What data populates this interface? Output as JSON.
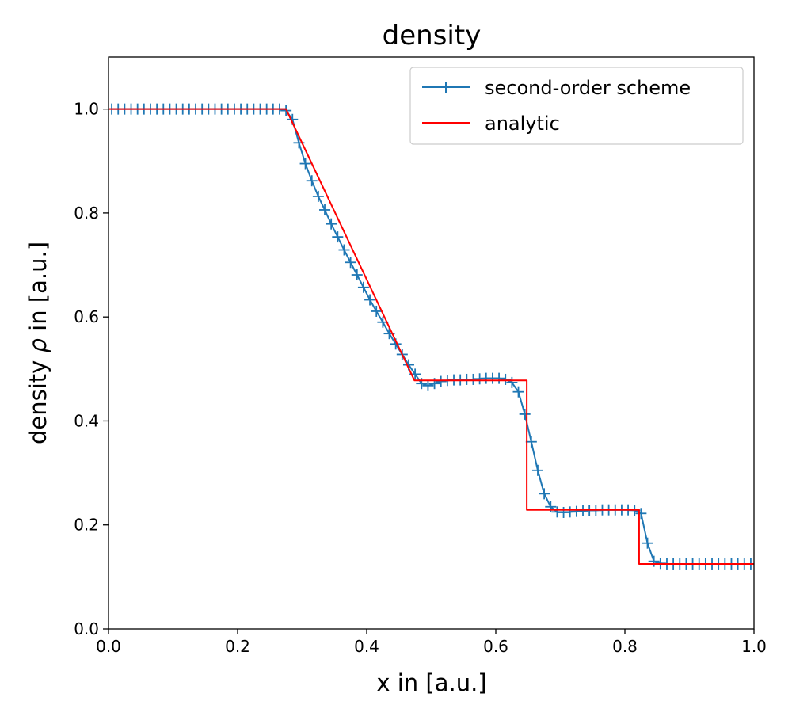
{
  "chart_data": {
    "type": "line",
    "title": "density",
    "xlabel": "x in [a.u.]",
    "ylabel": "density ρ in [a.u.]",
    "ylabel_prefix": "density ",
    "ylabel_symbol": "ρ",
    "ylabel_suffix": " in [a.u.]",
    "xlim": [
      0.0,
      1.0
    ],
    "ylim": [
      0.0,
      1.1
    ],
    "xticks": [
      "0.0",
      "0.2",
      "0.4",
      "0.6",
      "0.8",
      "1.0"
    ],
    "yticks": [
      "0.0",
      "0.2",
      "0.4",
      "0.6",
      "0.8",
      "1.0"
    ],
    "grid": false,
    "legend_position": "top-right",
    "series": [
      {
        "name": "second-order scheme",
        "color": "#1f77b4",
        "marker": "plus",
        "x": [
          0.005,
          0.015,
          0.025,
          0.035,
          0.045,
          0.055,
          0.065,
          0.075,
          0.085,
          0.095,
          0.105,
          0.115,
          0.125,
          0.135,
          0.145,
          0.155,
          0.165,
          0.175,
          0.185,
          0.195,
          0.205,
          0.215,
          0.225,
          0.235,
          0.245,
          0.255,
          0.265,
          0.275,
          0.285,
          0.295,
          0.305,
          0.315,
          0.325,
          0.335,
          0.345,
          0.355,
          0.365,
          0.375,
          0.385,
          0.395,
          0.405,
          0.415,
          0.425,
          0.435,
          0.445,
          0.455,
          0.465,
          0.475,
          0.485,
          0.495,
          0.505,
          0.515,
          0.525,
          0.535,
          0.545,
          0.555,
          0.565,
          0.575,
          0.585,
          0.595,
          0.605,
          0.615,
          0.625,
          0.635,
          0.645,
          0.655,
          0.665,
          0.675,
          0.685,
          0.695,
          0.705,
          0.715,
          0.725,
          0.735,
          0.745,
          0.755,
          0.765,
          0.775,
          0.785,
          0.795,
          0.805,
          0.815,
          0.825,
          0.835,
          0.845,
          0.855,
          0.865,
          0.875,
          0.885,
          0.895,
          0.905,
          0.915,
          0.925,
          0.935,
          0.945,
          0.955,
          0.965,
          0.975,
          0.985,
          0.995
        ],
        "y": [
          1.0,
          1.0,
          1.0,
          1.0,
          1.0,
          1.0,
          1.0,
          1.0,
          1.0,
          1.0,
          1.0,
          1.0,
          1.0,
          1.0,
          1.0,
          1.0,
          1.0,
          1.0,
          1.0,
          1.0,
          1.0,
          1.0,
          1.0,
          1.0,
          1.0,
          1.0,
          1.0,
          0.997,
          0.98,
          0.935,
          0.895,
          0.862,
          0.832,
          0.806,
          0.779,
          0.754,
          0.729,
          0.705,
          0.681,
          0.657,
          0.633,
          0.611,
          0.59,
          0.568,
          0.548,
          0.528,
          0.508,
          0.49,
          0.472,
          0.468,
          0.472,
          0.476,
          0.478,
          0.479,
          0.479,
          0.48,
          0.48,
          0.481,
          0.482,
          0.482,
          0.482,
          0.48,
          0.474,
          0.456,
          0.413,
          0.36,
          0.305,
          0.26,
          0.235,
          0.225,
          0.224,
          0.225,
          0.226,
          0.227,
          0.228,
          0.228,
          0.229,
          0.229,
          0.229,
          0.229,
          0.229,
          0.228,
          0.222,
          0.165,
          0.13,
          0.126,
          0.125,
          0.125,
          0.125,
          0.125,
          0.125,
          0.125,
          0.125,
          0.125,
          0.125,
          0.125,
          0.125,
          0.125,
          0.125,
          0.125
        ]
      },
      {
        "name": "analytic",
        "color": "#ff0000",
        "marker": "none",
        "x": [
          0.0,
          0.275,
          0.474,
          0.648,
          0.648,
          0.822,
          0.822,
          1.0
        ],
        "y": [
          1.0,
          1.0,
          0.478,
          0.478,
          0.229,
          0.229,
          0.125,
          0.125
        ]
      }
    ]
  }
}
